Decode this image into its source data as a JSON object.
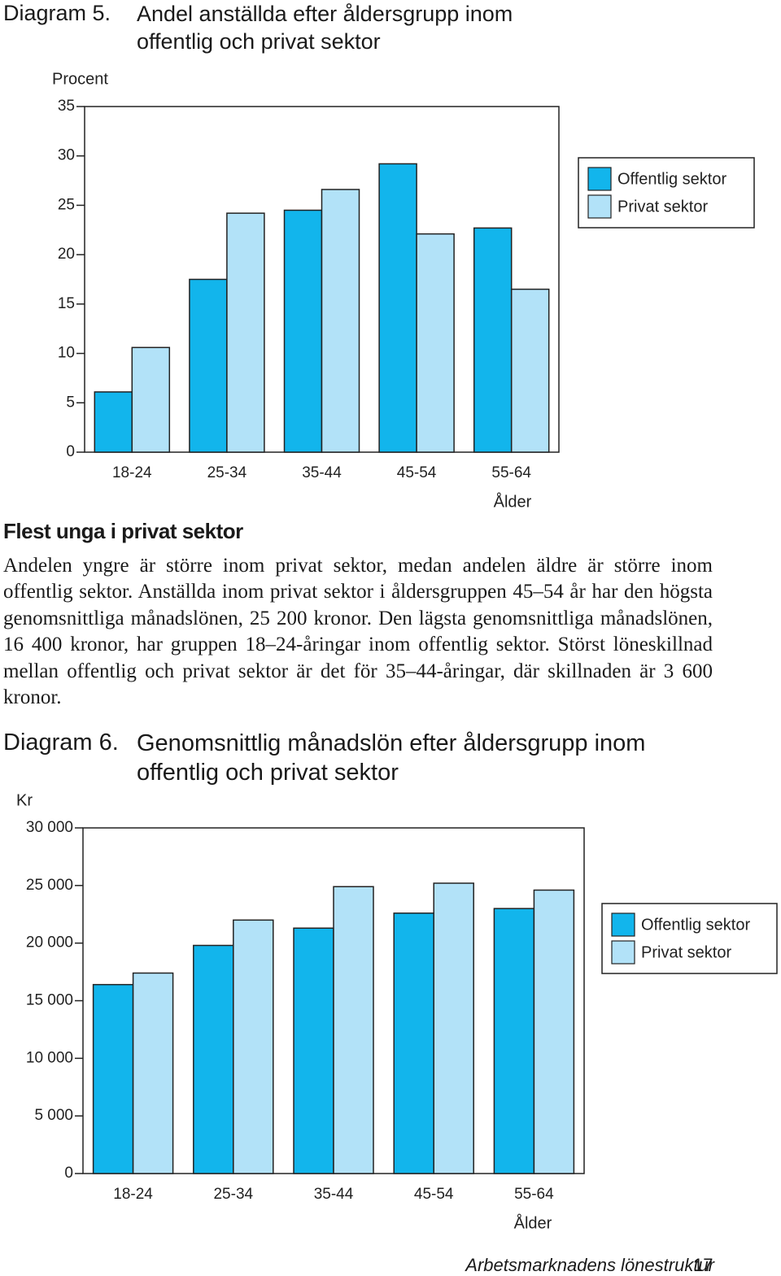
{
  "chart_data": [
    {
      "type": "bar",
      "label": "Diagram 5.",
      "title": "Andel anställda efter åldersgrupp inom offentlig och privat sektor",
      "y_label": "Procent",
      "x_label": "Ålder",
      "categories": [
        "18-24",
        "25-34",
        "35-44",
        "45-54",
        "55-64"
      ],
      "series": [
        {
          "name": "Offentlig sektor",
          "color": "#12b5ec",
          "values": [
            6.1,
            17.5,
            24.5,
            29.2,
            22.7
          ]
        },
        {
          "name": "Privat sektor",
          "color": "#b2e2f8",
          "values": [
            10.6,
            24.2,
            26.6,
            22.1,
            16.5
          ]
        }
      ],
      "ylim": [
        0,
        35
      ],
      "yticks": [
        0,
        5,
        10,
        15,
        20,
        25,
        30,
        35
      ],
      "grid": false,
      "legend": "right"
    },
    {
      "type": "bar",
      "label": "Diagram 6.",
      "title": "Genomsnittlig månadslön efter åldersgrupp inom offentlig och privat sektor",
      "y_label": "Kr",
      "x_label": "Ålder",
      "categories": [
        "18-24",
        "25-34",
        "35-44",
        "45-54",
        "55-64"
      ],
      "series": [
        {
          "name": "Offentlig sektor",
          "color": "#12b5ec",
          "values": [
            16400,
            19800,
            21300,
            22600,
            23000
          ]
        },
        {
          "name": "Privat sektor",
          "color": "#b2e2f8",
          "values": [
            17400,
            22000,
            24900,
            25200,
            24600
          ]
        }
      ],
      "ylim": [
        0,
        30000
      ],
      "yticks": [
        0,
        {
          "value": 5000,
          "label": "5 000"
        },
        {
          "value": 10000,
          "label": "10 000"
        },
        {
          "value": 15000,
          "label": "15 000"
        },
        {
          "value": 20000,
          "label": "20 000"
        },
        {
          "value": 25000,
          "label": "25 000"
        },
        {
          "value": 30000,
          "label": "30 000"
        }
      ],
      "grid": false,
      "legend": "right"
    }
  ],
  "text": {
    "heading": "Flest unga i privat sektor",
    "paragraph": "Andelen yngre är större inom privat sektor, medan andelen äldre är större inom offentlig sektor. Anställda inom privat sektor i åldersgruppen 45–54 år har den högsta genomsnittliga månadslönen, 25 200 kronor. Den lägsta genomsnittliga månadslönen, 16 400 kronor, har gruppen 18–24-åringar inom offentlig sektor. Störst löneskillnad mellan offentlig och privat sektor är det för 35–44-åringar, där skillnaden är 3 600 kronor."
  },
  "footer": {
    "title": "Arbetsmarknadens lönestruktur",
    "page": 17
  }
}
